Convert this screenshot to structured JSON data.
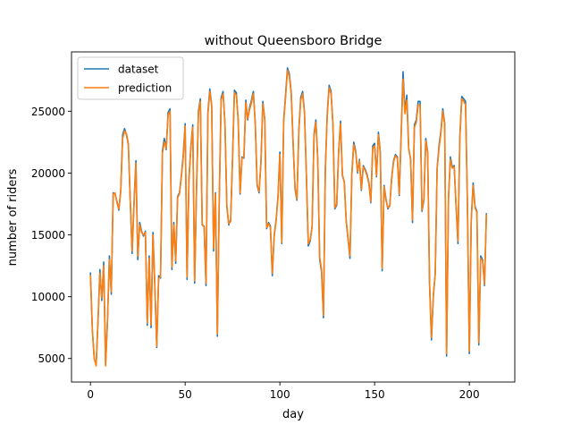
{
  "chart_data": {
    "type": "line",
    "title": "without Queensboro Bridge",
    "xlabel": "day",
    "ylabel": "number of riders",
    "xlim": [
      -10,
      224
    ],
    "ylim": [
      3100,
      29800
    ],
    "xticks": [
      0,
      50,
      100,
      150,
      200
    ],
    "yticks": [
      5000,
      10000,
      15000,
      20000,
      25000
    ],
    "grid": false,
    "legend_position": "upper-left",
    "series": [
      {
        "name": "dataset",
        "color": "#1f77b4",
        "values": [
          11900,
          7300,
          5000,
          4500,
          8000,
          12200,
          9700,
          12800,
          4500,
          8000,
          13300,
          10200,
          18400,
          18300,
          17700,
          17000,
          18600,
          23100,
          23600,
          23100,
          22300,
          17800,
          13500,
          17600,
          21000,
          13000,
          16000,
          15300,
          14900,
          15300,
          7700,
          13300,
          7500,
          15200,
          10800,
          5900,
          11700,
          11500,
          21800,
          22800,
          21900,
          24900,
          25200,
          12200,
          16000,
          12700,
          18100,
          18400,
          19800,
          21500,
          24000,
          11400,
          19600,
          22100,
          23900,
          11100,
          18800,
          25000,
          26000,
          15800,
          15700,
          10900,
          24900,
          26800,
          25500,
          13700,
          18400,
          6800,
          18000,
          26100,
          26600,
          24000,
          17300,
          15800,
          16200,
          21200,
          26700,
          26500,
          24200,
          18300,
          21300,
          21200,
          25900,
          24300,
          25300,
          25900,
          26600,
          24000,
          19000,
          18400,
          20900,
          25800,
          24300,
          15500,
          16000,
          15700,
          11700,
          15000,
          16200,
          18100,
          21700,
          14300,
          24300,
          26300,
          28500,
          28000,
          26500,
          22300,
          18700,
          17800,
          23500,
          26100,
          26600,
          24900,
          19700,
          14100,
          14500,
          15700,
          23100,
          24300,
          21000,
          13000,
          12000,
          8300,
          20400,
          24800,
          27100,
          26600,
          23900,
          17100,
          17400,
          21700,
          24200,
          19800,
          19300,
          16100,
          14600,
          13100,
          20000,
          22500,
          21800,
          20000,
          21100,
          18600,
          20600,
          20300,
          19900,
          19200,
          17600,
          22200,
          22400,
          19700,
          23300,
          21700,
          12100,
          19000,
          17900,
          17100,
          17400,
          19600,
          21000,
          21500,
          21300,
          18200,
          23100,
          28200,
          25000,
          26300,
          22000,
          21100,
          16000,
          23900,
          24300,
          25800,
          25800,
          16900,
          17800,
          22800,
          21700,
          11000,
          6500,
          10000,
          11900,
          20400,
          22200,
          23400,
          25200,
          24000,
          5200,
          18000,
          21300,
          20500,
          20600,
          17300,
          14300,
          23000,
          26200,
          26000,
          25800,
          17500,
          5400,
          16200,
          19200,
          17300,
          16900,
          6100,
          13300,
          13000,
          10900,
          16700
        ]
      },
      {
        "name": "prediction",
        "color": "#ff7f0e",
        "values": [
          11700,
          7400,
          5000,
          4400,
          8200,
          11900,
          9900,
          12500,
          4400,
          8200,
          13000,
          10400,
          18300,
          18400,
          17600,
          17100,
          18500,
          22800,
          23400,
          23200,
          22400,
          17900,
          13700,
          17400,
          20800,
          13300,
          15800,
          15200,
          15000,
          15200,
          7900,
          13100,
          7700,
          15000,
          11000,
          6000,
          11500,
          11600,
          21600,
          22500,
          22000,
          24700,
          25000,
          12400,
          15800,
          12900,
          18000,
          18300,
          19700,
          21300,
          23800,
          11600,
          19400,
          22000,
          23700,
          11300,
          18700,
          24800,
          25800,
          15900,
          15600,
          11100,
          24700,
          26600,
          25400,
          13900,
          18300,
          7000,
          17900,
          25900,
          26400,
          24100,
          17400,
          15900,
          16100,
          21100,
          26500,
          26300,
          24300,
          18400,
          21200,
          21300,
          25700,
          24400,
          25100,
          25700,
          26400,
          24100,
          19100,
          18500,
          20800,
          25600,
          24400,
          15600,
          15900,
          15600,
          11900,
          14900,
          16100,
          18000,
          21500,
          14400,
          24100,
          26100,
          28300,
          27800,
          26400,
          22400,
          18800,
          17900,
          23300,
          25900,
          26400,
          24800,
          19800,
          14300,
          14600,
          15600,
          22900,
          24100,
          21100,
          13200,
          12200,
          8500,
          20300,
          24600,
          26900,
          26400,
          24000,
          17200,
          17500,
          21600,
          24000,
          19900,
          19200,
          16200,
          14700,
          13300,
          19900,
          22300,
          21700,
          20100,
          21000,
          18700,
          20500,
          20200,
          19800,
          19100,
          17700,
          22000,
          22200,
          19800,
          23100,
          21600,
          12300,
          18900,
          17800,
          17200,
          17300,
          19500,
          20900,
          21400,
          21200,
          18300,
          22900,
          27600,
          24800,
          25900,
          21900,
          21200,
          16200,
          23700,
          24100,
          25500,
          25500,
          17000,
          17900,
          22600,
          21600,
          11200,
          6700,
          10200,
          11800,
          20300,
          22000,
          23200,
          25000,
          23900,
          5400,
          17900,
          21100,
          20400,
          20500,
          17400,
          14500,
          22800,
          26000,
          25800,
          25500,
          17400,
          5600,
          16100,
          19000,
          17200,
          16800,
          6300,
          13100,
          12900,
          11000,
          16600
        ]
      }
    ]
  }
}
